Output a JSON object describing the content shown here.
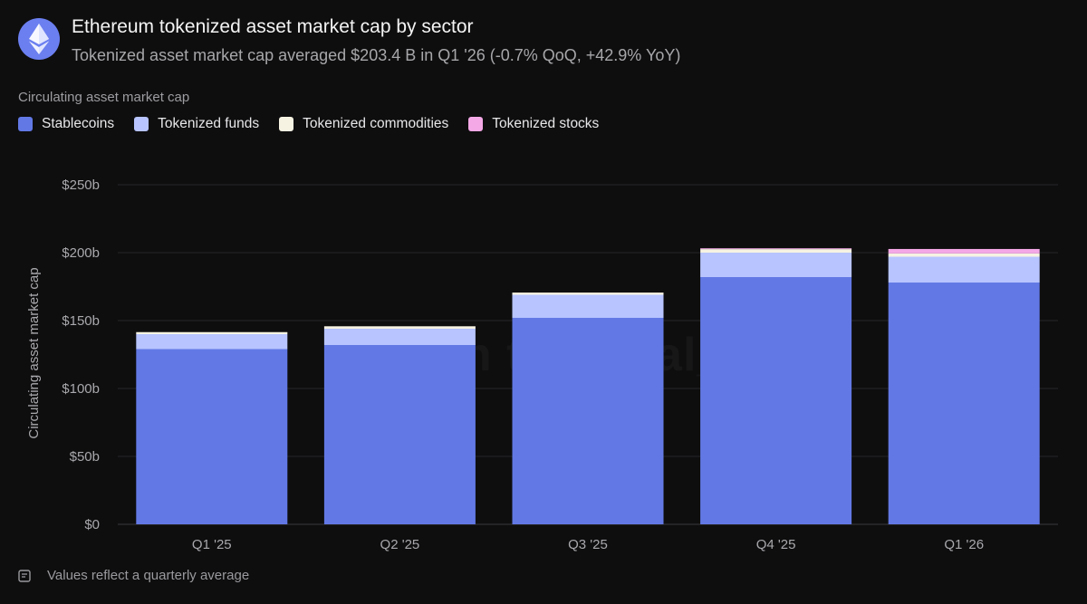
{
  "header": {
    "title": "Ethereum tokenized asset market cap by sector",
    "subtitle": "Tokenized asset market cap averaged $203.4 B in Q1 '26 (-0.7% QoQ, +42.9% YoY)",
    "logo_icon": "ethereum-logo-icon"
  },
  "legend": {
    "title": "Circulating asset market cap",
    "items": [
      {
        "label": "Stablecoins",
        "color": "#6279e5"
      },
      {
        "label": "Tokenized funds",
        "color": "#b7c4ff"
      },
      {
        "label": "Tokenized commodities",
        "color": "#f7f3e3"
      },
      {
        "label": "Tokenized stocks",
        "color": "#f4a9e6"
      }
    ]
  },
  "watermark": "token terminal_",
  "footer": {
    "note": "Values reflect a quarterly average",
    "icon": "note-icon"
  },
  "chart_data": {
    "type": "bar",
    "stacked": true,
    "categories": [
      "Q1 '25",
      "Q2 '25",
      "Q3 '25",
      "Q4 '25",
      "Q1 '26"
    ],
    "series": [
      {
        "name": "Stablecoins",
        "color": "#6279e5",
        "values": [
          129,
          132,
          152,
          182,
          178
        ]
      },
      {
        "name": "Tokenized funds",
        "color": "#b7c4ff",
        "values": [
          11,
          12,
          17,
          18,
          19
        ]
      },
      {
        "name": "Tokenized commodities",
        "color": "#f7f3e3",
        "values": [
          1.5,
          1.8,
          1.6,
          2.6,
          2.4
        ]
      },
      {
        "name": "Tokenized stocks",
        "color": "#f4a9e6",
        "values": [
          0,
          0,
          0,
          0.6,
          3.3
        ]
      }
    ],
    "ylabel": "Circulating asset market cap",
    "ylim": [
      0,
      250
    ],
    "yticks": [
      0,
      50,
      100,
      150,
      200,
      250
    ],
    "ytick_labels": [
      "$0",
      "$50b",
      "$100b",
      "$150b",
      "$200b",
      "$250b"
    ],
    "grid": true
  }
}
